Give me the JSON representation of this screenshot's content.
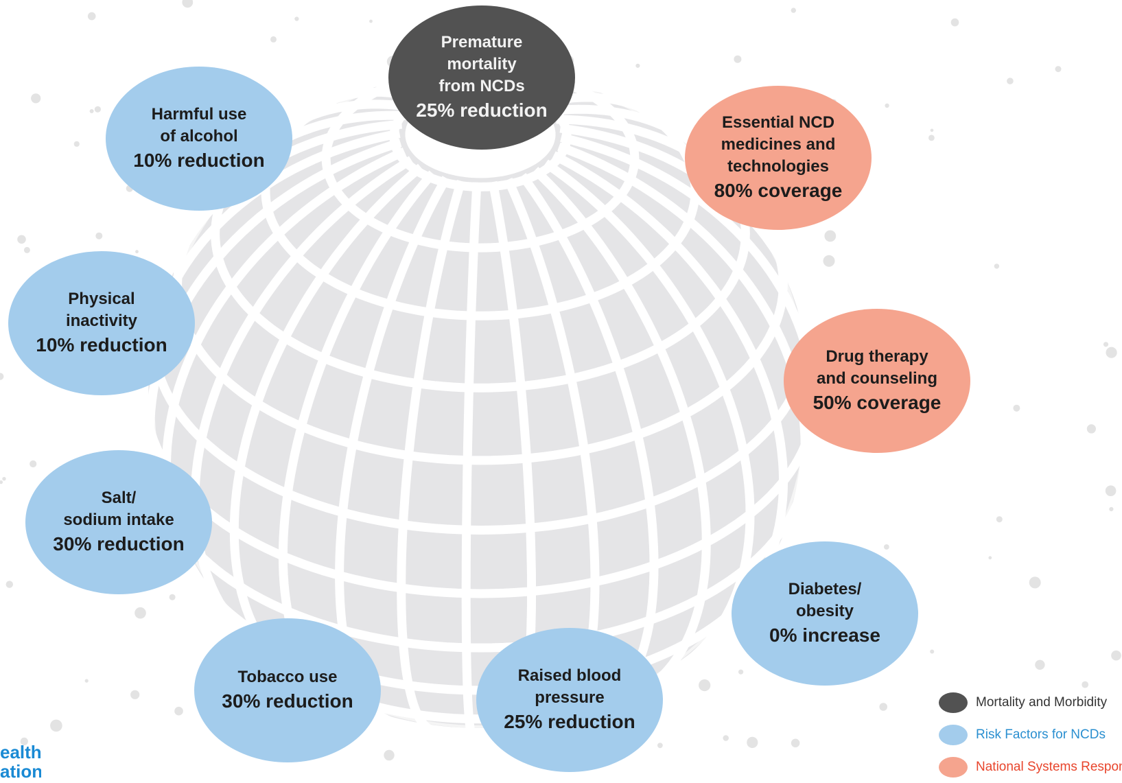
{
  "targets": [
    {
      "id": "premature-mortality",
      "category": "mortality",
      "lines": [
        "Premature",
        "mortality",
        "from NCDs"
      ],
      "value": "25% reduction"
    },
    {
      "id": "harmful-alcohol",
      "category": "risk",
      "lines": [
        "Harmful use",
        "of alcohol"
      ],
      "value": "10% reduction"
    },
    {
      "id": "essential-medicines",
      "category": "system",
      "lines": [
        "Essential NCD",
        "medicines and",
        "technologies"
      ],
      "value": "80% coverage"
    },
    {
      "id": "physical-inactivity",
      "category": "risk",
      "lines": [
        "Physical",
        "inactivity"
      ],
      "value": "10% reduction"
    },
    {
      "id": "drug-therapy",
      "category": "system",
      "lines": [
        "Drug therapy",
        "and counseling"
      ],
      "value": "50% coverage"
    },
    {
      "id": "salt-sodium",
      "category": "risk",
      "lines": [
        "Salt/",
        "sodium intake"
      ],
      "value": "30% reduction"
    },
    {
      "id": "diabetes-obesity",
      "category": "risk",
      "lines": [
        "Diabetes/",
        "obesity"
      ],
      "value": "0% increase"
    },
    {
      "id": "tobacco-use",
      "category": "risk",
      "lines": [
        "Tobacco use"
      ],
      "value": "30% reduction"
    },
    {
      "id": "blood-pressure",
      "category": "risk",
      "lines": [
        "Raised blood",
        "pressure"
      ],
      "value": "25% reduction"
    }
  ],
  "legend": [
    {
      "category": "mortality",
      "label": "Mortality and Morbidity",
      "swatch": "#525252",
      "text_color": "#333333"
    },
    {
      "category": "risk",
      "label": "Risk Factors for NCDs",
      "swatch": "#a3ccec",
      "text_color": "#2a8fd0"
    },
    {
      "category": "system",
      "label": "National Systems Response",
      "swatch": "#f5a48e",
      "text_color": "#e8452c"
    }
  ],
  "logo": {
    "lines": [
      "ealth",
      "ation"
    ],
    "color": "#1a8ad4"
  },
  "colors": {
    "globe_fill": "#e5e5e7",
    "globe_lines": "#ffffff",
    "dots": "#e3e3e3"
  }
}
